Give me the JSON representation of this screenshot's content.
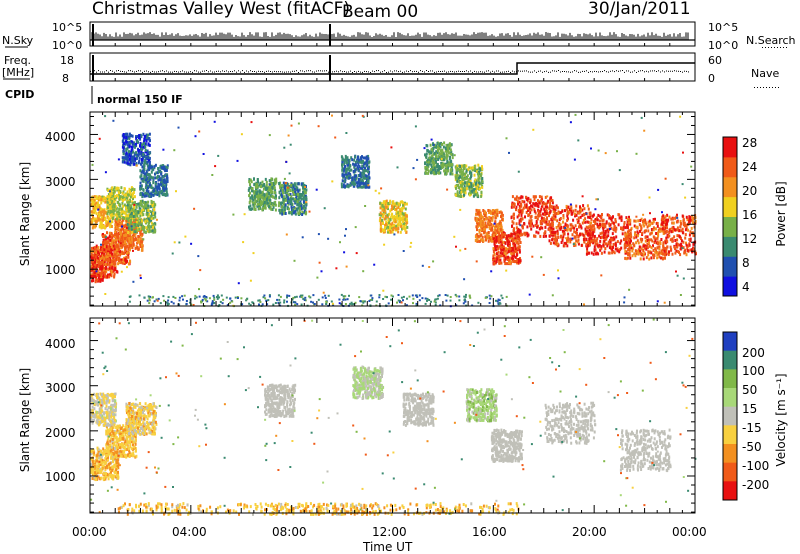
{
  "header": {
    "site": "Christmas Valley West (fitACF)",
    "beam": "Beam 00",
    "date": "30/Jan/2011"
  },
  "top_panels": {
    "nsky_label": "N.Sky",
    "nsearch_label": "N.Search",
    "noise_left_top": "10^5",
    "noise_left_bottom": "10^0",
    "noise_right_top": "10^5",
    "noise_right_bottom": "10^0",
    "freq_label": "Freq.",
    "freq_unit": "[MHz]",
    "freq_top": "18",
    "freq_bottom": "8",
    "nave_label": "Nave",
    "nave_top": "60",
    "nave_bottom": "0",
    "cpid_label": "CPID",
    "cpid_value": "normal 150 IF"
  },
  "axes": {
    "y_label": "Slant Range [km]",
    "y_ticks": [
      "1000",
      "2000",
      "3000",
      "4000"
    ],
    "x_ticks": [
      "00:00",
      "04:00",
      "08:00",
      "12:00",
      "16:00",
      "20:00",
      "00:00"
    ],
    "x_label": "Time UT"
  },
  "colorbars": {
    "power": {
      "label": "Power [dB]",
      "ticks": [
        "4",
        "8",
        "12",
        "16",
        "20",
        "24",
        "28"
      ],
      "colors": [
        "#1010e0",
        "#2050b0",
        "#3a8a70",
        "#78b048",
        "#f0d020",
        "#f39020",
        "#f05a18",
        "#e81010"
      ]
    },
    "velocity": {
      "label": "Velocity [m s⁻¹]",
      "ticks": [
        "200",
        "100",
        "50",
        "15",
        "-15",
        "-50",
        "-100",
        "-200"
      ],
      "colors": [
        "#2040c0",
        "#3a8a70",
        "#80b848",
        "#a8d878",
        "#c0c0b8",
        "#f8d040",
        "#f39020",
        "#f05a18",
        "#e81010"
      ]
    }
  },
  "chart_data": [
    {
      "type": "heatmap",
      "name": "Power",
      "x_range_hours": [
        0,
        24
      ],
      "y_range_km": [
        180,
        4500
      ],
      "color_range": [
        0,
        30
      ],
      "cells": [
        {
          "t": 0.0,
          "r": 1100,
          "v": 28
        },
        {
          "t": 0.5,
          "r": 1200,
          "v": 27
        },
        {
          "t": 1.0,
          "r": 1500,
          "v": 26
        },
        {
          "t": 1.5,
          "r": 1800,
          "v": 24
        },
        {
          "t": 0.3,
          "r": 2300,
          "v": 20
        },
        {
          "t": 1.2,
          "r": 2500,
          "v": 16
        },
        {
          "t": 2.0,
          "r": 2200,
          "v": 14
        },
        {
          "t": 2.5,
          "r": 3000,
          "v": 8
        },
        {
          "t": 1.8,
          "r": 3700,
          "v": 6
        },
        {
          "t": 6.8,
          "r": 2700,
          "v": 12
        },
        {
          "t": 8.0,
          "r": 2600,
          "v": 10
        },
        {
          "t": 10.5,
          "r": 3200,
          "v": 8
        },
        {
          "t": 12.0,
          "r": 2200,
          "v": 18
        },
        {
          "t": 13.8,
          "r": 3500,
          "v": 12
        },
        {
          "t": 15.0,
          "r": 3000,
          "v": 14
        },
        {
          "t": 15.8,
          "r": 2000,
          "v": 24
        },
        {
          "t": 16.5,
          "r": 1500,
          "v": 27
        },
        {
          "t": 17.5,
          "r": 2200,
          "v": 28
        },
        {
          "t": 19.0,
          "r": 2000,
          "v": 27
        },
        {
          "t": 20.5,
          "r": 1800,
          "v": 28
        },
        {
          "t": 22.0,
          "r": 1700,
          "v": 26
        },
        {
          "t": 23.5,
          "r": 1800,
          "v": 27
        }
      ]
    },
    {
      "type": "heatmap",
      "name": "Velocity",
      "x_range_hours": [
        0,
        24
      ],
      "y_range_km": [
        180,
        4500
      ],
      "color_range": [
        -200,
        200
      ],
      "cells": [
        {
          "t": 0.5,
          "r": 1300,
          "v": -40
        },
        {
          "t": 1.2,
          "r": 1800,
          "v": -40
        },
        {
          "t": 0.4,
          "r": 2500,
          "v": -10
        },
        {
          "t": 2.0,
          "r": 2300,
          "v": -30
        },
        {
          "t": 7.5,
          "r": 2700,
          "v": 0
        },
        {
          "t": 11.0,
          "r": 3100,
          "v": 20
        },
        {
          "t": 13.0,
          "r": 2500,
          "v": 0
        },
        {
          "t": 15.5,
          "r": 2600,
          "v": 30
        },
        {
          "t": 16.5,
          "r": 1700,
          "v": 0
        },
        {
          "t": 19.0,
          "r": 2200,
          "v": 0
        },
        {
          "t": 22.0,
          "r": 1600,
          "v": 0
        },
        {
          "t": 6.0,
          "r": 300,
          "v": -40
        },
        {
          "t": 12.0,
          "r": 300,
          "v": -40
        }
      ]
    }
  ]
}
